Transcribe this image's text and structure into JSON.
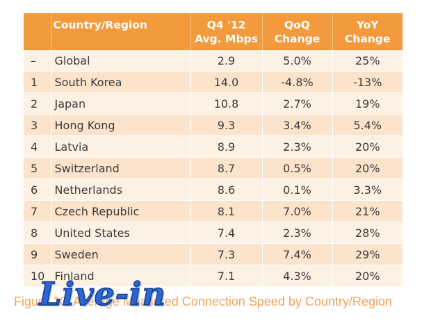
{
  "table": {
    "headers": {
      "rank": "",
      "country": "Country/Region",
      "speed_line1": "Q4 '12",
      "speed_line2": "Avg. Mbps",
      "qoq_line1": "QoQ",
      "qoq_line2": "Change",
      "yoy_line1": "YoY",
      "yoy_line2": "Change"
    },
    "rows": [
      {
        "rank": "–",
        "country": "Global",
        "speed": "2.9",
        "qoq": "5.0%",
        "yoy": "25%"
      },
      {
        "rank": "1",
        "country": "South Korea",
        "speed": "14.0",
        "qoq": "-4.8%",
        "yoy": "-13%"
      },
      {
        "rank": "2",
        "country": "Japan",
        "speed": "10.8",
        "qoq": "2.7%",
        "yoy": "19%"
      },
      {
        "rank": "3",
        "country": "Hong Kong",
        "speed": "9.3",
        "qoq": "3.4%",
        "yoy": "5.4%"
      },
      {
        "rank": "4",
        "country": "Latvia",
        "speed": "8.9",
        "qoq": "2.3%",
        "yoy": "20%"
      },
      {
        "rank": "5",
        "country": "Switzerland",
        "speed": "8.7",
        "qoq": "0.5%",
        "yoy": "20%"
      },
      {
        "rank": "6",
        "country": "Netherlands",
        "speed": "8.6",
        "qoq": "0.1%",
        "yoy": "3.3%"
      },
      {
        "rank": "7",
        "country": "Czech Republic",
        "speed": "8.1",
        "qoq": "7.0%",
        "yoy": "21%"
      },
      {
        "rank": "8",
        "country": "United States",
        "speed": "7.4",
        "qoq": "2.3%",
        "yoy": "28%"
      },
      {
        "rank": "9",
        "country": "Sweden",
        "speed": "7.3",
        "qoq": "7.4%",
        "yoy": "29%"
      },
      {
        "rank": "10",
        "country": "Finland",
        "speed": "7.1",
        "qoq": "4.3%",
        "yoy": "20%"
      }
    ]
  },
  "caption": "Figure 10: Average Measured Connection Speed by Country/Region",
  "watermark": "Live-in",
  "colors": {
    "header_bg": "#f29a3c",
    "row_light": "#fdf1e3",
    "row_dark": "#fce4cc",
    "caption": "#f0a35c",
    "watermark": "#1a5bd6"
  }
}
